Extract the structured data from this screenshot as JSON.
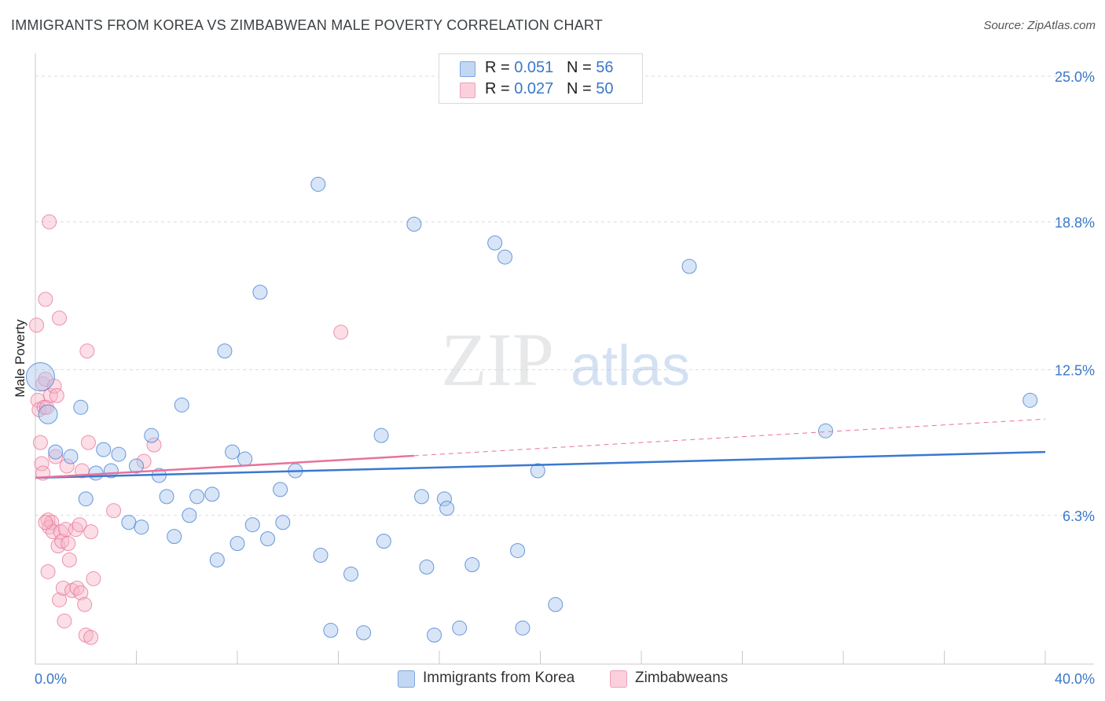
{
  "title": "IMMIGRANTS FROM KOREA VS ZIMBABWEAN MALE POVERTY CORRELATION CHART",
  "source": "Source: ZipAtlas.com",
  "watermark": {
    "zip": "ZIP",
    "atlas": "atlas"
  },
  "legend": {
    "rows": [
      {
        "r_label": "R = ",
        "r_value": "0.051",
        "n_label": "N = ",
        "n_value": "56",
        "color": "#a8c6ee"
      },
      {
        "r_label": "R = ",
        "r_value": "0.027",
        "n_label": "N = ",
        "n_value": "50",
        "color": "#f6b6c8"
      }
    ]
  },
  "bottom_legend": [
    {
      "label": "Immigrants from Korea",
      "color": "#a8c6ee"
    },
    {
      "label": "Zimbabweans",
      "color": "#f6b6c8"
    }
  ],
  "chart_data": {
    "type": "scatter",
    "title": "IMMIGRANTS FROM KOREA VS ZIMBABWEAN MALE POVERTY CORRELATION CHART",
    "xlabel": "",
    "ylabel": "Male Poverty",
    "xlim": [
      0,
      40
    ],
    "ylim": [
      0,
      25
    ],
    "x_tick_labels": [
      "0.0%",
      "40.0%"
    ],
    "y_ticks": [
      6.3,
      12.5,
      18.8,
      25.0
    ],
    "y_tick_labels": [
      "6.3%",
      "12.5%",
      "18.8%",
      "25.0%"
    ],
    "grid": true,
    "series": [
      {
        "name": "Immigrants from Korea",
        "color": "#3a78d0",
        "fill": "#a8c6ee",
        "r": 0.051,
        "n": 56,
        "trend": {
          "x": [
            0,
            40
          ],
          "y": [
            7.9,
            9.0
          ],
          "dashed_from": null
        },
        "points": [
          {
            "x": 0.2,
            "y": 12.2,
            "size": 18
          },
          {
            "x": 0.5,
            "y": 10.6,
            "size": 12
          },
          {
            "x": 0.8,
            "y": 9.0
          },
          {
            "x": 1.4,
            "y": 8.8
          },
          {
            "x": 1.8,
            "y": 10.9
          },
          {
            "x": 2.0,
            "y": 7.0
          },
          {
            "x": 2.4,
            "y": 8.1
          },
          {
            "x": 2.7,
            "y": 9.1
          },
          {
            "x": 3.0,
            "y": 8.2
          },
          {
            "x": 3.3,
            "y": 8.9
          },
          {
            "x": 3.7,
            "y": 6.0
          },
          {
            "x": 4.0,
            "y": 8.4
          },
          {
            "x": 4.2,
            "y": 5.8
          },
          {
            "x": 4.6,
            "y": 9.7
          },
          {
            "x": 4.9,
            "y": 8.0
          },
          {
            "x": 5.2,
            "y": 7.1
          },
          {
            "x": 5.5,
            "y": 5.4
          },
          {
            "x": 5.8,
            "y": 11.0
          },
          {
            "x": 6.1,
            "y": 6.3
          },
          {
            "x": 6.4,
            "y": 7.1
          },
          {
            "x": 7.0,
            "y": 7.2
          },
          {
            "x": 7.2,
            "y": 4.4
          },
          {
            "x": 7.5,
            "y": 13.3
          },
          {
            "x": 7.8,
            "y": 9.0
          },
          {
            "x": 8.0,
            "y": 5.1
          },
          {
            "x": 8.3,
            "y": 8.7
          },
          {
            "x": 8.6,
            "y": 5.9
          },
          {
            "x": 8.9,
            "y": 15.8
          },
          {
            "x": 9.2,
            "y": 5.3
          },
          {
            "x": 9.7,
            "y": 7.4
          },
          {
            "x": 9.8,
            "y": 6.0
          },
          {
            "x": 10.3,
            "y": 8.2
          },
          {
            "x": 11.2,
            "y": 20.4
          },
          {
            "x": 11.3,
            "y": 4.6
          },
          {
            "x": 11.7,
            "y": 1.4
          },
          {
            "x": 12.5,
            "y": 3.8
          },
          {
            "x": 13.0,
            "y": 1.3
          },
          {
            "x": 13.7,
            "y": 9.7
          },
          {
            "x": 13.8,
            "y": 5.2
          },
          {
            "x": 15.0,
            "y": 18.7
          },
          {
            "x": 15.3,
            "y": 7.1
          },
          {
            "x": 15.5,
            "y": 4.1
          },
          {
            "x": 15.8,
            "y": 1.2
          },
          {
            "x": 16.2,
            "y": 7.0
          },
          {
            "x": 16.3,
            "y": 6.6
          },
          {
            "x": 16.8,
            "y": 1.5
          },
          {
            "x": 17.3,
            "y": 4.2
          },
          {
            "x": 18.2,
            "y": 17.9
          },
          {
            "x": 18.6,
            "y": 17.3
          },
          {
            "x": 19.1,
            "y": 4.8
          },
          {
            "x": 19.3,
            "y": 1.5
          },
          {
            "x": 19.9,
            "y": 8.2
          },
          {
            "x": 20.6,
            "y": 2.5
          },
          {
            "x": 25.9,
            "y": 16.9
          },
          {
            "x": 31.3,
            "y": 9.9
          },
          {
            "x": 39.4,
            "y": 11.2
          }
        ]
      },
      {
        "name": "Zimbabweans",
        "color": "#e8729a",
        "fill": "#f6b6c8",
        "r": 0.027,
        "n": 50,
        "trend": {
          "x": [
            0,
            40
          ],
          "y": [
            7.9,
            10.4
          ],
          "dashed_from": 15.0
        },
        "points": [
          {
            "x": 0.05,
            "y": 14.4
          },
          {
            "x": 0.1,
            "y": 11.2
          },
          {
            "x": 0.15,
            "y": 10.8
          },
          {
            "x": 0.2,
            "y": 9.4
          },
          {
            "x": 0.25,
            "y": 8.5
          },
          {
            "x": 0.3,
            "y": 8.1
          },
          {
            "x": 0.3,
            "y": 11.9
          },
          {
            "x": 0.35,
            "y": 10.9
          },
          {
            "x": 0.4,
            "y": 15.5
          },
          {
            "x": 0.4,
            "y": 12.1
          },
          {
            "x": 0.45,
            "y": 10.9
          },
          {
            "x": 0.5,
            "y": 6.1
          },
          {
            "x": 0.5,
            "y": 3.9
          },
          {
            "x": 0.55,
            "y": 5.8
          },
          {
            "x": 0.55,
            "y": 18.8
          },
          {
            "x": 0.6,
            "y": 11.4
          },
          {
            "x": 0.65,
            "y": 6.0
          },
          {
            "x": 0.7,
            "y": 5.6
          },
          {
            "x": 0.75,
            "y": 11.8
          },
          {
            "x": 0.8,
            "y": 8.8
          },
          {
            "x": 0.85,
            "y": 11.4
          },
          {
            "x": 0.9,
            "y": 5.0
          },
          {
            "x": 0.95,
            "y": 2.7
          },
          {
            "x": 0.95,
            "y": 14.7
          },
          {
            "x": 1.0,
            "y": 5.6
          },
          {
            "x": 1.05,
            "y": 5.2
          },
          {
            "x": 1.1,
            "y": 3.2
          },
          {
            "x": 1.15,
            "y": 1.8
          },
          {
            "x": 1.2,
            "y": 5.7
          },
          {
            "x": 1.25,
            "y": 8.4
          },
          {
            "x": 1.3,
            "y": 5.1
          },
          {
            "x": 1.35,
            "y": 4.4
          },
          {
            "x": 1.45,
            "y": 3.1
          },
          {
            "x": 1.6,
            "y": 5.7
          },
          {
            "x": 1.65,
            "y": 3.2
          },
          {
            "x": 1.75,
            "y": 5.9
          },
          {
            "x": 1.8,
            "y": 3.0
          },
          {
            "x": 1.85,
            "y": 8.2
          },
          {
            "x": 1.95,
            "y": 2.5
          },
          {
            "x": 2.0,
            "y": 1.2
          },
          {
            "x": 2.05,
            "y": 13.3
          },
          {
            "x": 2.1,
            "y": 9.4
          },
          {
            "x": 2.2,
            "y": 1.1
          },
          {
            "x": 2.2,
            "y": 5.6
          },
          {
            "x": 2.3,
            "y": 3.6
          },
          {
            "x": 3.1,
            "y": 6.5
          },
          {
            "x": 4.3,
            "y": 8.6
          },
          {
            "x": 4.7,
            "y": 9.3
          },
          {
            "x": 12.1,
            "y": 14.1
          },
          {
            "x": 0.4,
            "y": 6.0
          }
        ]
      }
    ]
  }
}
